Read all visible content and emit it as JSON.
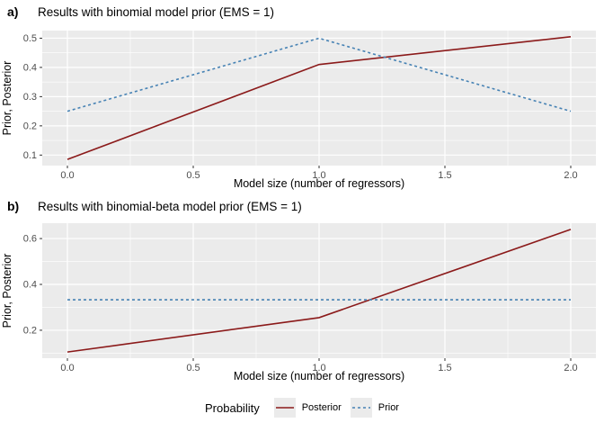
{
  "colors": {
    "background": "#FFFFFF",
    "panel_background": "#EBEBEB",
    "gridline": "#FFFFFF",
    "tick_mark": "#333333",
    "axis_text": "#4D4D4D",
    "axis_title": "#000000",
    "posterior": "#8B1A1A",
    "prior": "#4682B4",
    "legend_key_background": "#EBEBEB"
  },
  "legend": {
    "title": "Probability",
    "position": "bottom",
    "items": [
      {
        "label": "Posterior",
        "line_style": "solid",
        "color": "#8B1A1A"
      },
      {
        "label": "Prior",
        "line_style": "dashed",
        "color": "#4682B4"
      }
    ]
  },
  "chart_data": [
    {
      "type": "line",
      "panel_tag": "a)",
      "title": "Results with binomial model prior (EMS = 1)",
      "xlabel": "Model size (number of regressors)",
      "ylabel": "Prior, Posterior",
      "x": [
        0,
        1,
        2
      ],
      "series": [
        {
          "name": "Posterior",
          "values": [
            0.085,
            0.41,
            0.505
          ],
          "color": "#8B1A1A",
          "line_style": "solid"
        },
        {
          "name": "Prior",
          "values": [
            0.25,
            0.5,
            0.25
          ],
          "color": "#4682B4",
          "line_style": "dashed"
        }
      ],
      "xlim": [
        -0.1,
        2.1
      ],
      "ylim": [
        0.064,
        0.526
      ],
      "xticks": {
        "values": [
          0,
          0.5,
          1,
          1.5,
          2
        ],
        "labels": [
          "0.0",
          "0.5",
          "1.0",
          "1.5",
          "2.0"
        ]
      },
      "yticks": {
        "values": [
          0.1,
          0.2,
          0.3,
          0.4,
          0.5
        ],
        "labels": [
          "0.1",
          "0.2",
          "0.3",
          "0.4",
          "0.5"
        ]
      },
      "x_minor": [
        0.25,
        0.75,
        1.25,
        1.75
      ],
      "y_minor": [
        0.15,
        0.25,
        0.35,
        0.45
      ],
      "grid": true
    },
    {
      "type": "line",
      "panel_tag": "b)",
      "title": "Results with binomial-beta model prior (EMS = 1)",
      "xlabel": "Model size (number of regressors)",
      "ylabel": "Prior, Posterior",
      "x": [
        0,
        1,
        2
      ],
      "series": [
        {
          "name": "Posterior",
          "values": [
            0.105,
            0.255,
            0.64
          ],
          "color": "#8B1A1A",
          "line_style": "solid"
        },
        {
          "name": "Prior",
          "values": [
            0.333,
            0.333,
            0.333
          ],
          "color": "#4682B4",
          "line_style": "dashed"
        }
      ],
      "xlim": [
        -0.1,
        2.1
      ],
      "ylim": [
        0.078,
        0.667
      ],
      "xticks": {
        "values": [
          0,
          0.5,
          1,
          1.5,
          2
        ],
        "labels": [
          "0.0",
          "0.5",
          "1.0",
          "1.5",
          "2.0"
        ]
      },
      "yticks": {
        "values": [
          0.2,
          0.4,
          0.6
        ],
        "labels": [
          "0.2",
          "0.4",
          "0.6"
        ]
      },
      "x_minor": [
        0.25,
        0.75,
        1.25,
        1.75
      ],
      "y_minor": [
        0.1,
        0.3,
        0.5
      ],
      "grid": true
    }
  ]
}
